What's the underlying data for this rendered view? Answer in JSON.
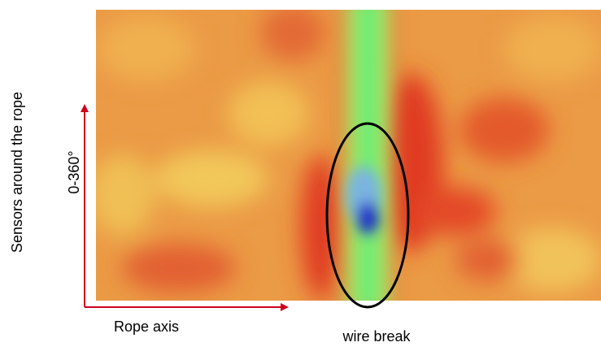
{
  "y_axis_label": "Sensors around the rope",
  "y_range_label": "0-360°",
  "x_axis_label": "Rope axis",
  "annotation": "wire break"
}
